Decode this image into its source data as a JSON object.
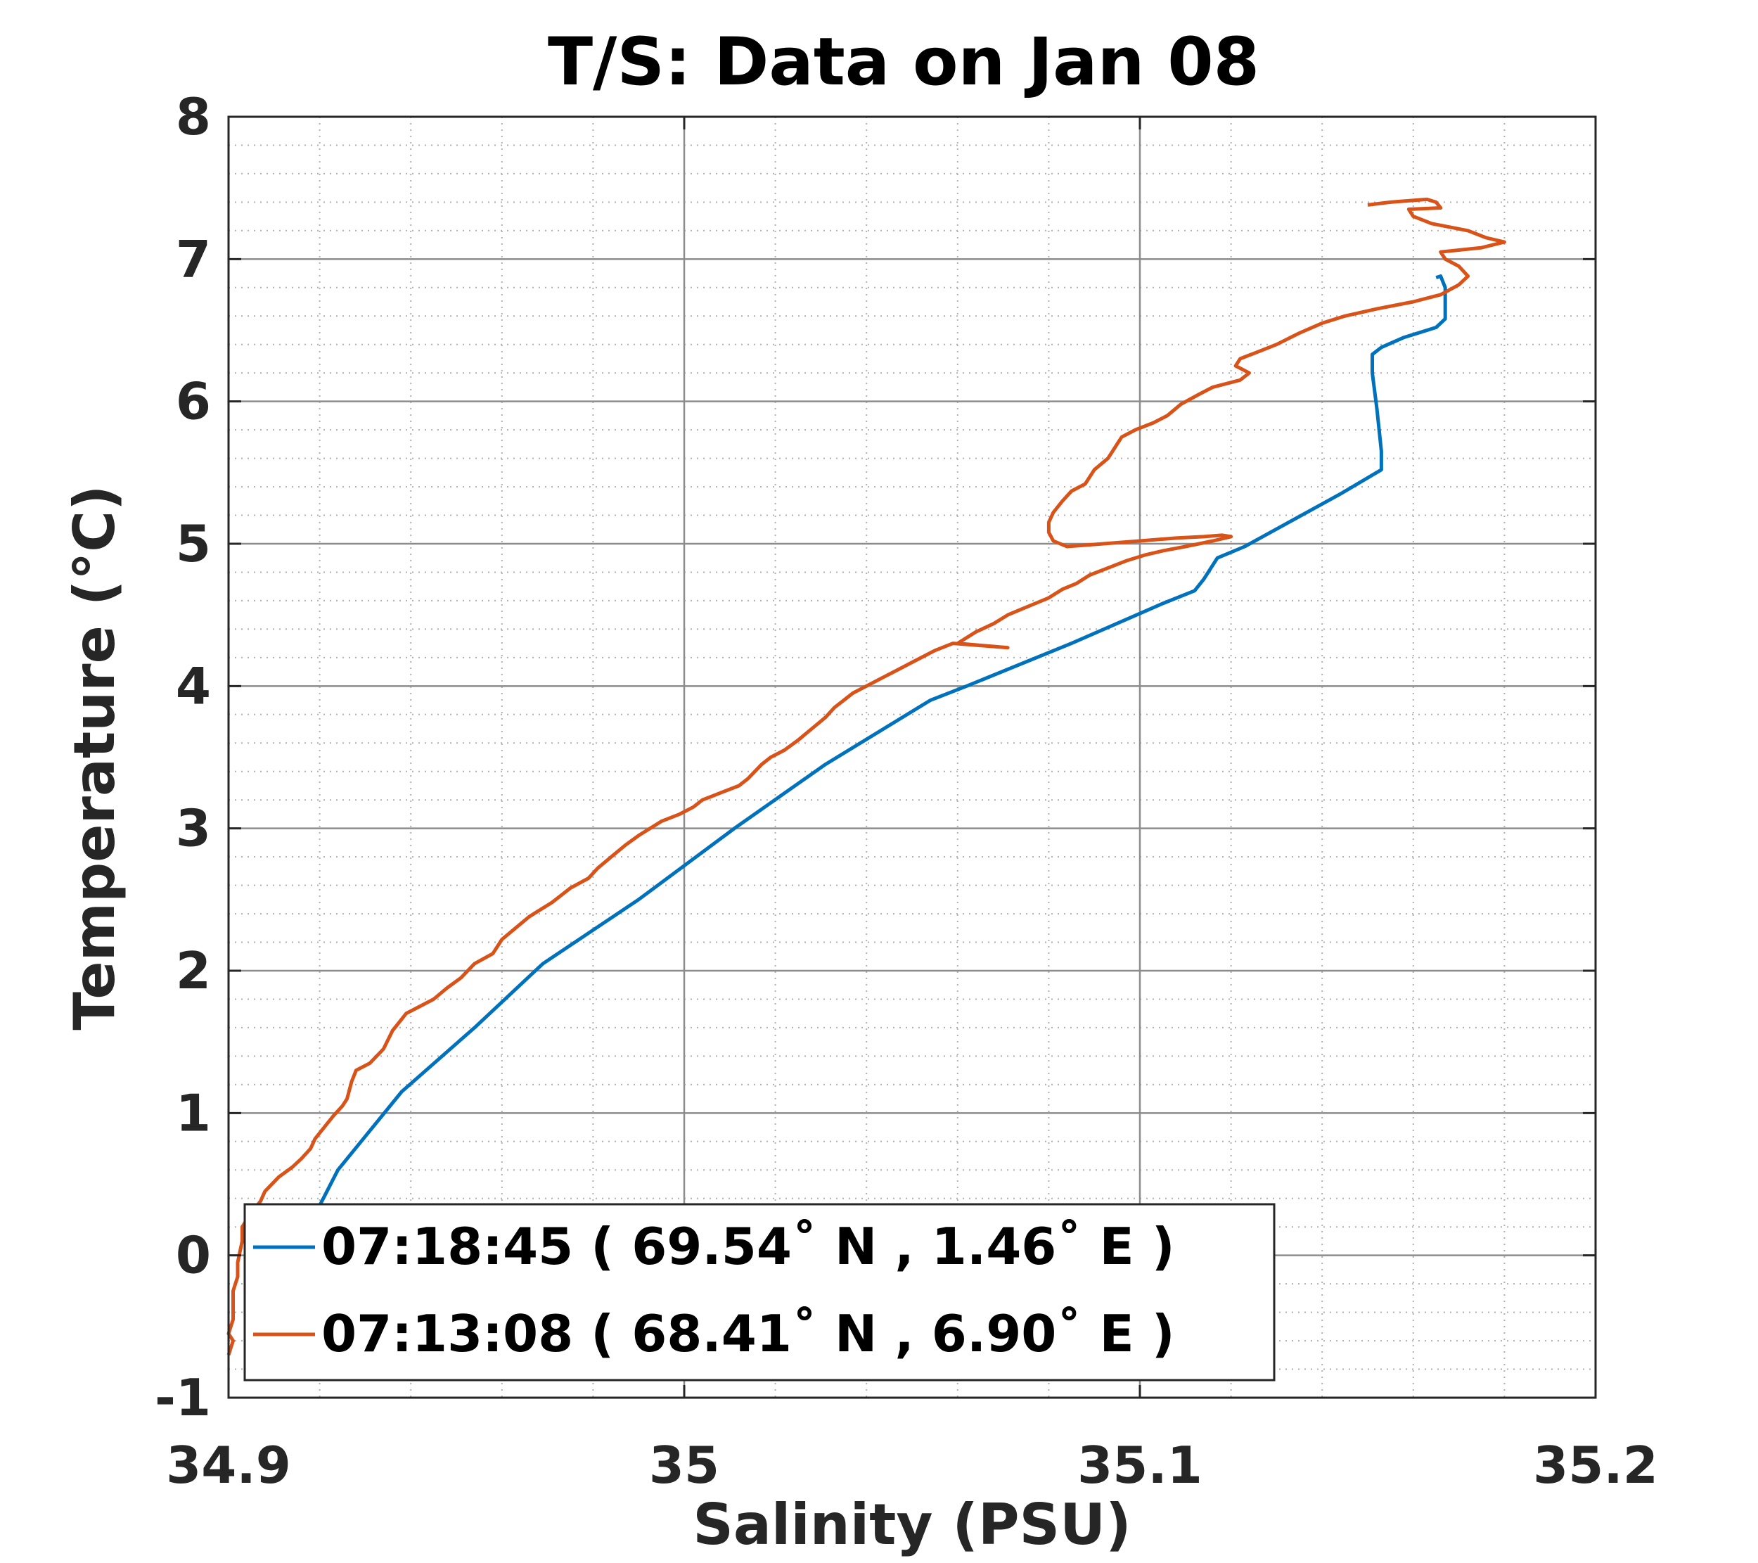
{
  "chart_data": {
    "type": "line",
    "title": "T/S: Data on Jan 08",
    "xlabel": "Salinity (PSU)",
    "ylabel": "Temperature (°C)",
    "xlim": [
      34.9,
      35.2
    ],
    "ylim": [
      -1,
      8
    ],
    "xticks": [
      34.9,
      35.0,
      35.1,
      35.2
    ],
    "xtick_labels": [
      "34.9",
      "35",
      "35.1",
      "35.2"
    ],
    "yticks": [
      -1,
      0,
      1,
      2,
      3,
      4,
      5,
      6,
      7,
      8
    ],
    "ytick_labels": [
      "-1",
      "0",
      "1",
      "2",
      "3",
      "4",
      "5",
      "6",
      "7",
      "8"
    ],
    "grid": true,
    "minor_grid": true,
    "legend_position": "bottom-left",
    "series": [
      {
        "name": "07:18:45 ( 69.54˚ N , 1.46˚ E )",
        "color": "#0072BD",
        "x": [
          34.92,
          34.924,
          34.938,
          34.954,
          34.969,
          34.99,
          35.011,
          35.031,
          35.054,
          35.062,
          35.085,
          35.105,
          35.112,
          35.114,
          35.117,
          35.123,
          35.144,
          35.153,
          35.153,
          35.152,
          35.151,
          35.151,
          35.153,
          35.158,
          35.165,
          35.167,
          35.167,
          35.167,
          35.167,
          35.166,
          35.165
        ],
        "y": [
          0.35,
          0.6,
          1.15,
          1.6,
          2.05,
          2.5,
          3.0,
          3.45,
          3.9,
          4.0,
          4.3,
          4.58,
          4.67,
          4.75,
          4.9,
          4.98,
          5.35,
          5.52,
          5.65,
          5.95,
          6.2,
          6.33,
          6.38,
          6.45,
          6.52,
          6.58,
          6.65,
          6.72,
          6.8,
          6.88,
          6.87
        ]
      },
      {
        "name": "07:13:08 ( 68.41˚ N , 6.90˚ E )",
        "color": "#D95319",
        "x": [
          34.9,
          34.901,
          34.9,
          34.901,
          34.901,
          34.901,
          34.902,
          34.902,
          34.903,
          34.903,
          34.904,
          34.905,
          34.907,
          34.908,
          34.911,
          34.914,
          34.916,
          34.918,
          34.919,
          34.921,
          34.923,
          34.925,
          34.926,
          34.927,
          34.928,
          34.931,
          34.934,
          34.936,
          34.937,
          34.939,
          34.942,
          34.945,
          34.948,
          34.951,
          34.954,
          34.958,
          34.96,
          34.963,
          34.966,
          34.968,
          34.971,
          34.975,
          34.979,
          34.981,
          34.984,
          34.987,
          34.99,
          34.995,
          34.999,
          35.002,
          35.004,
          35.008,
          35.012,
          35.014,
          35.017,
          35.019,
          35.022,
          35.025,
          35.028,
          35.031,
          35.033,
          35.035,
          35.037,
          35.04,
          35.043,
          35.046,
          35.049,
          35.052,
          35.055,
          35.059,
          35.071,
          35.06,
          35.064,
          35.068,
          35.071,
          35.074,
          35.077,
          35.08,
          35.083,
          35.086,
          35.089,
          35.093,
          35.097,
          35.101,
          35.105,
          35.11,
          35.116,
          35.12,
          35.118,
          35.114,
          35.108,
          35.1,
          35.092,
          35.084,
          35.081,
          35.08,
          35.08,
          35.081,
          35.083,
          35.085,
          35.088,
          35.09,
          35.093,
          35.095,
          35.096,
          35.099,
          35.103,
          35.106,
          35.109,
          35.113,
          35.116,
          35.122,
          35.124,
          35.121,
          35.122,
          35.126,
          35.13,
          35.135,
          35.14,
          35.145,
          35.152,
          35.16,
          35.166,
          35.17,
          35.172,
          35.17,
          35.167,
          35.166,
          35.175,
          35.18,
          35.176,
          35.172,
          35.164,
          35.16,
          35.159,
          35.166,
          35.165,
          35.163,
          35.155,
          35.15
        ],
        "y": [
          -0.7,
          -0.6,
          -0.55,
          -0.45,
          -0.35,
          -0.25,
          -0.15,
          -0.05,
          0.1,
          0.2,
          0.25,
          0.3,
          0.38,
          0.45,
          0.55,
          0.62,
          0.68,
          0.75,
          0.82,
          0.9,
          0.98,
          1.05,
          1.1,
          1.22,
          1.3,
          1.35,
          1.45,
          1.58,
          1.62,
          1.7,
          1.75,
          1.8,
          1.88,
          1.95,
          2.05,
          2.12,
          2.22,
          2.3,
          2.38,
          2.42,
          2.48,
          2.58,
          2.65,
          2.72,
          2.8,
          2.88,
          2.95,
          3.05,
          3.1,
          3.15,
          3.2,
          3.25,
          3.3,
          3.35,
          3.45,
          3.5,
          3.55,
          3.62,
          3.7,
          3.78,
          3.85,
          3.9,
          3.95,
          4.0,
          4.05,
          4.1,
          4.15,
          4.2,
          4.25,
          4.3,
          4.27,
          4.3,
          4.38,
          4.44,
          4.5,
          4.54,
          4.58,
          4.62,
          4.68,
          4.72,
          4.78,
          4.83,
          4.88,
          4.92,
          4.95,
          4.98,
          5.02,
          5.05,
          5.06,
          5.05,
          5.04,
          5.02,
          5.0,
          4.98,
          5.02,
          5.08,
          5.15,
          5.22,
          5.3,
          5.37,
          5.42,
          5.52,
          5.6,
          5.7,
          5.75,
          5.8,
          5.85,
          5.9,
          5.98,
          6.05,
          6.1,
          6.15,
          6.2,
          6.25,
          6.3,
          6.35,
          6.4,
          6.48,
          6.55,
          6.6,
          6.65,
          6.7,
          6.75,
          6.82,
          6.88,
          6.95,
          7.0,
          7.05,
          7.08,
          7.12,
          7.15,
          7.2,
          7.25,
          7.3,
          7.35,
          7.36,
          7.4,
          7.42,
          7.4,
          7.38
        ]
      }
    ]
  }
}
